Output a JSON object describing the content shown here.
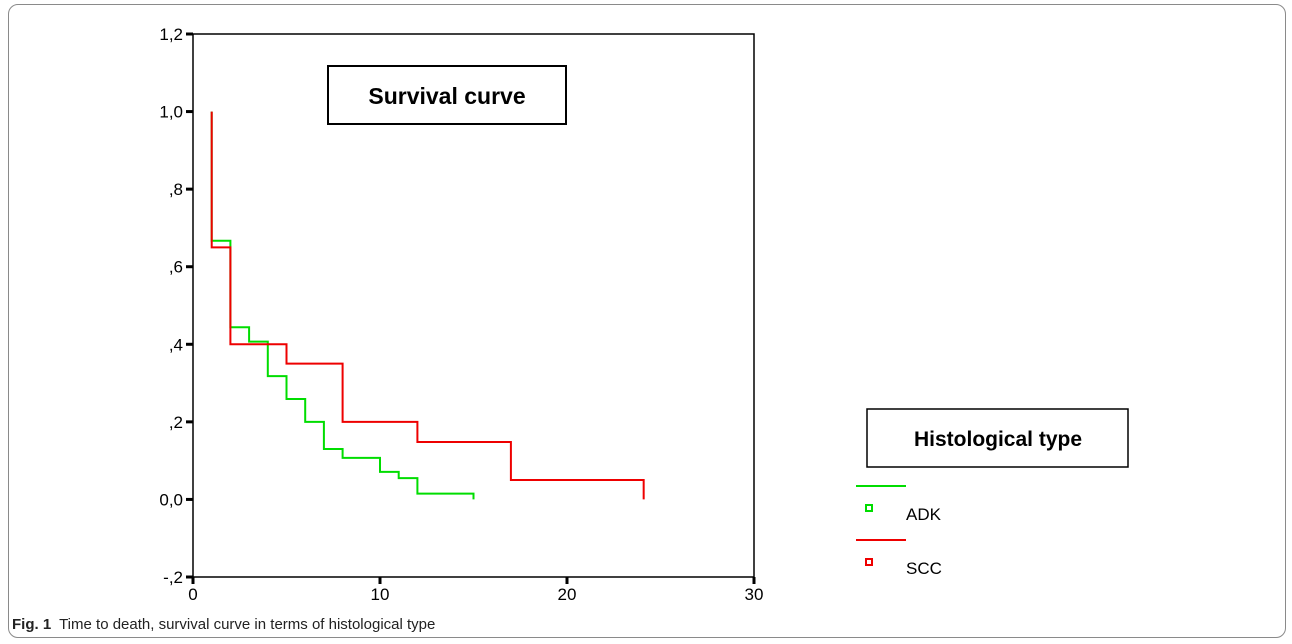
{
  "figure": {
    "label": "Fig. 1",
    "caption": "Time to death, survival curve in terms of histological type"
  },
  "chart_data": {
    "type": "line",
    "title": "Survival curve",
    "legend_title": "Histological type",
    "legend_position": "right",
    "xlabel": "",
    "ylabel": "",
    "xlim": [
      0,
      30
    ],
    "ylim": [
      -0.2,
      1.2
    ],
    "x_ticks": [
      0,
      10,
      20,
      30
    ],
    "x_tick_labels": [
      "0",
      "10",
      "20",
      "30"
    ],
    "y_ticks": [
      -0.2,
      0,
      0.2,
      0.4,
      0.6,
      0.8,
      1.0,
      1.2
    ],
    "y_tick_labels": [
      "-,2",
      "0,0",
      ",2",
      ",4",
      ",6",
      ",8",
      "1,0",
      "1,2"
    ],
    "grid": false,
    "series": [
      {
        "name": "ADK",
        "color": "#00dd00",
        "step": true,
        "x": [
          1,
          2,
          3,
          3.5,
          4,
          5,
          6,
          6.5,
          7,
          8,
          10,
          11,
          12,
          15
        ],
        "y": [
          0.667,
          0.444,
          0.407,
          0.407,
          0.318,
          0.259,
          0.2,
          0.2,
          0.13,
          0.107,
          0.071,
          0.055,
          0.015,
          0.0
        ]
      },
      {
        "name": "SCC",
        "color": "#ee0000",
        "step": true,
        "x": [
          1,
          2,
          5,
          8,
          12,
          17,
          24.1
        ],
        "y": [
          0.65,
          0.4,
          0.35,
          0.2,
          0.148,
          0.05,
          0.0
        ]
      }
    ]
  }
}
